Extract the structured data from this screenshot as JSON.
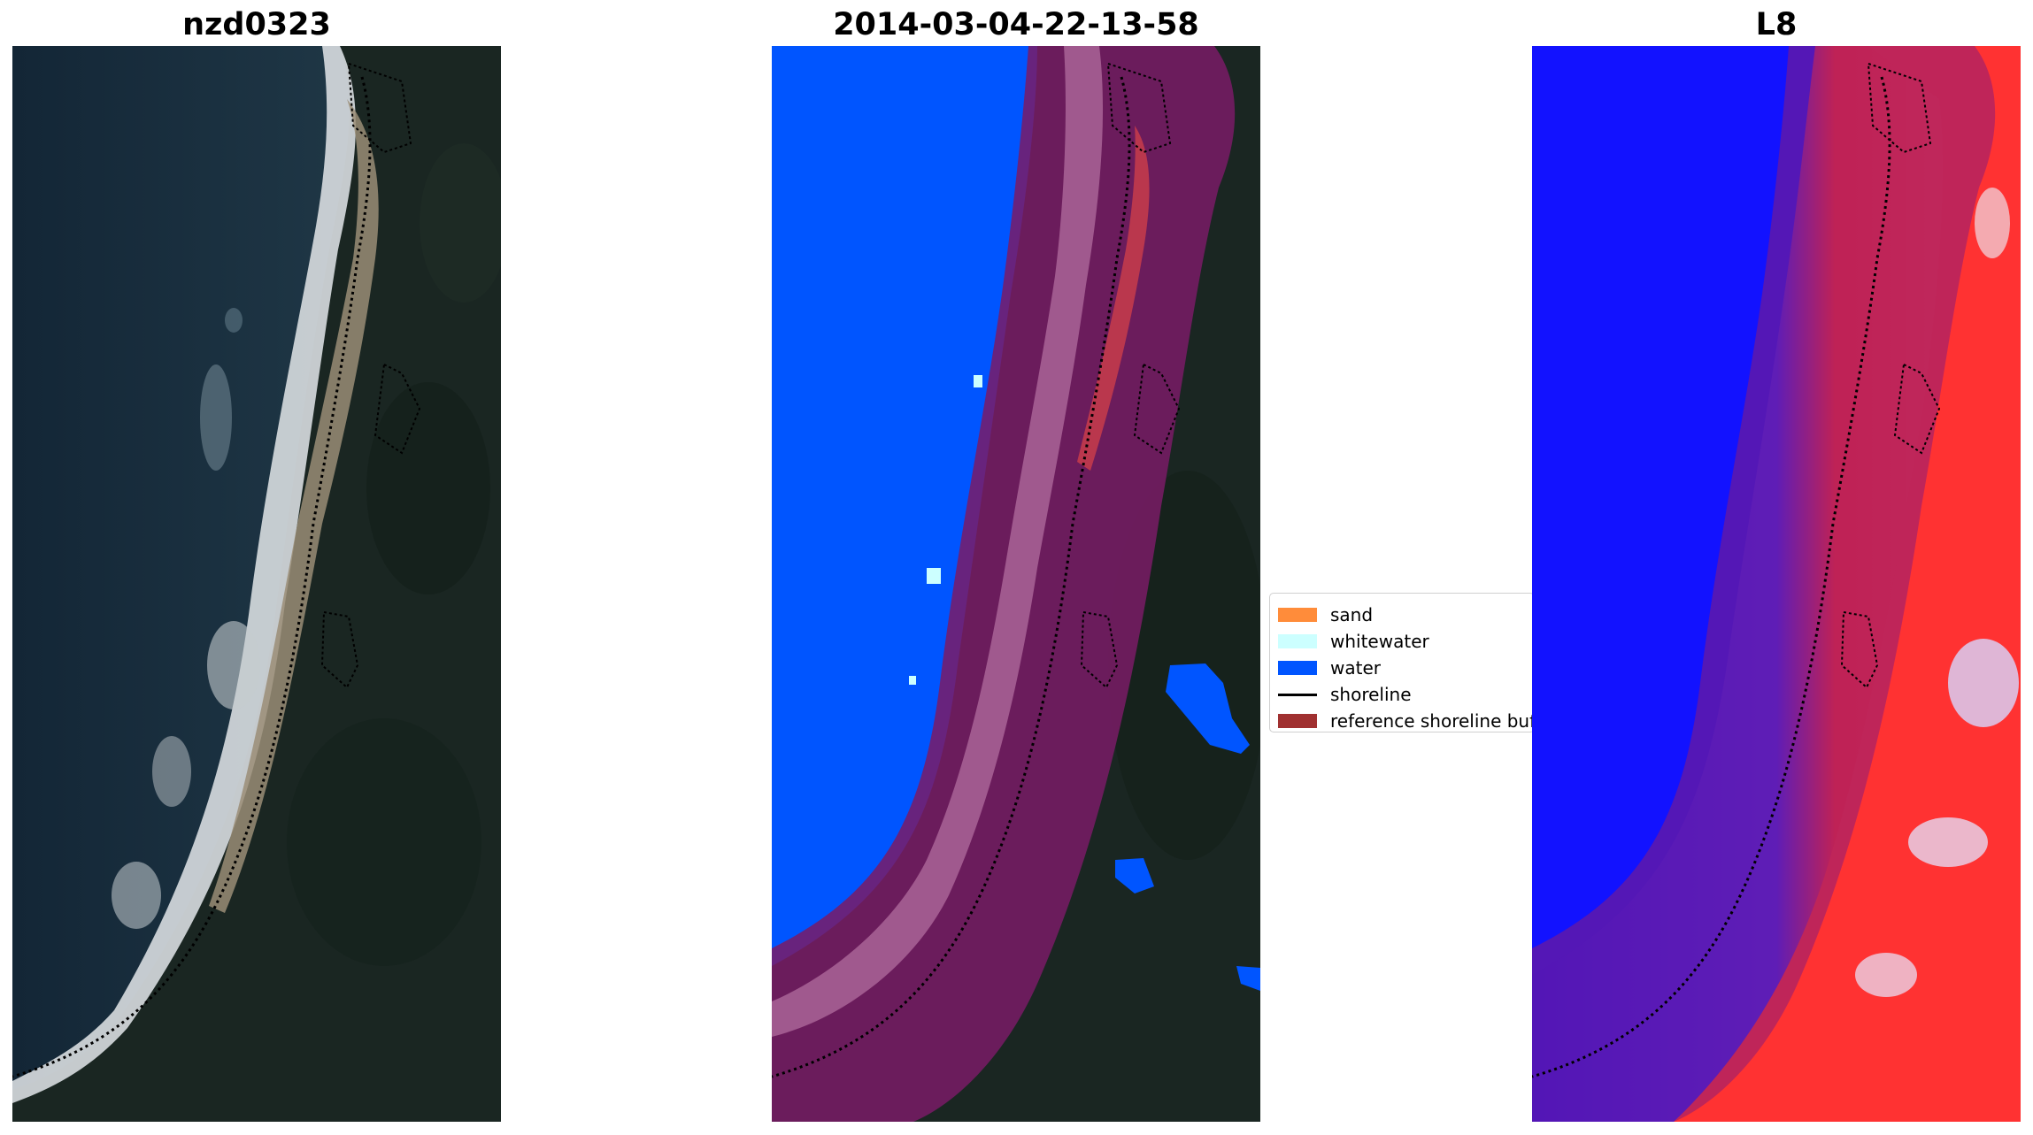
{
  "panels": [
    {
      "title": "nzd0323"
    },
    {
      "title": "2014-03-04-22-13-58"
    },
    {
      "title": "L8"
    }
  ],
  "legend": {
    "items": [
      {
        "label": "sand",
        "color": "#ff8c3a",
        "kind": "patch"
      },
      {
        "label": "whitewater",
        "color": "#ccffff",
        "kind": "patch"
      },
      {
        "label": "water",
        "color": "#0055ff",
        "kind": "patch"
      },
      {
        "label": "shoreline",
        "color": "#000000",
        "kind": "line"
      },
      {
        "label": "reference shoreline buffer",
        "color": "#a03030",
        "kind": "patch"
      }
    ]
  },
  "colors": {
    "ocean_rgb": "#1b2f3e",
    "land_rgb": "#1a2622",
    "classified_water": "#0055ff",
    "buffer_overlay": "#7a1b66",
    "sand_overlay": "#a35d90",
    "mndwi_water": "#1a1aff",
    "mndwi_land": "#ff3a3a"
  }
}
